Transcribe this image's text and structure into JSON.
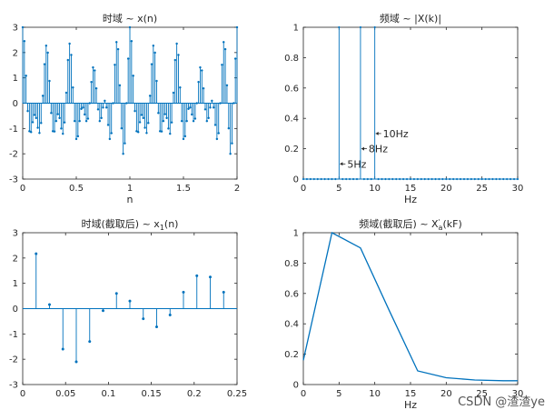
{
  "watermark": "CSDN @渣渣ye",
  "chart_data": [
    {
      "type": "stem",
      "title": "时域 ~ x(n)",
      "xlabel": "n",
      "xlim": [
        0,
        2
      ],
      "ylim": [
        -3,
        3
      ],
      "xticks": [
        0,
        0.5,
        1,
        1.5,
        2
      ],
      "xtick_labels": [
        "0",
        "0.5",
        "1",
        "1.5",
        "2"
      ],
      "yticks": [
        -3,
        -2,
        -1,
        0,
        1,
        2,
        3
      ],
      "ytick_labels": [
        "-3",
        "-2",
        "-1",
        "0",
        "1",
        "2",
        "3"
      ],
      "series": [
        {
          "x": [
            0,
            0.015625,
            0.03125,
            0.046875,
            0.0625,
            0.078125,
            0.09375,
            0.109375,
            0.125,
            0.140625,
            0.15625,
            0.171875,
            0.1875,
            0.203125,
            0.21875,
            0.234375,
            0.25,
            0.265625,
            0.28125,
            0.296875,
            0.3125,
            0.328125,
            0.34375,
            0.359375,
            0.375,
            0.390625,
            0.40625,
            0.421875,
            0.4375,
            0.453125,
            0.46875,
            0.484375,
            0.5,
            0.515625,
            0.53125,
            0.546875,
            0.5625,
            0.578125,
            0.59375,
            0.609375,
            0.625,
            0.640625,
            0.65625,
            0.671875,
            0.6875,
            0.703125,
            0.71875,
            0.734375,
            0.75,
            0.765625,
            0.78125,
            0.796875,
            0.8125,
            0.828125,
            0.84375,
            0.859375,
            0.875,
            0.890625,
            0.90625,
            0.921875,
            0.9375,
            0.953125,
            0.96875,
            0.984375,
            1,
            1.015625,
            1.03125,
            1.046875,
            1.0625,
            1.078125,
            1.09375,
            1.109375,
            1.125,
            1.140625,
            1.15625,
            1.171875,
            1.1875,
            1.203125,
            1.21875,
            1.234375,
            1.25,
            1.265625,
            1.28125,
            1.296875,
            1.3125,
            1.328125,
            1.34375,
            1.359375,
            1.375,
            1.390625,
            1.40625,
            1.421875,
            1.4375,
            1.453125,
            1.46875,
            1.484375,
            1.5,
            1.515625,
            1.53125,
            1.546875,
            1.5625,
            1.578125,
            1.59375,
            1.609375,
            1.625,
            1.640625,
            1.65625,
            1.671875,
            1.6875,
            1.703125,
            1.71875,
            1.734375,
            1.75,
            1.765625,
            1.78125,
            1.796875,
            1.8125,
            1.828125,
            1.84375,
            1.859375,
            1.875,
            1.890625,
            1.90625,
            1.921875,
            1.9375,
            1.953125,
            1.96875,
            1.984375,
            2
          ],
          "y": [
            3,
            2.4525,
            1.0849,
            -0.31,
            -1.1071,
            -1.1418,
            -0.7518,
            -0.4646,
            -0.5858,
            -0.9709,
            -1.1765,
            -0.7825,
            0.2929,
            1.5398,
            2.2735,
            1.997,
            0.8787,
            -0.3879,
            -1.1071,
            -1.1172,
            -0.7071,
            -0.4336,
            -0.5858,
            -1.0006,
            -1.2071,
            -0.7608,
            0.4142,
            1.7045,
            2.3536,
            1.9075,
            0.6213,
            -0.7071,
            -1.4142,
            -1.3062,
            -0.7071,
            -0.2244,
            -0.1716,
            -0.4464,
            -0.7071,
            -0.6109,
            0,
            0.8383,
            1.4142,
            1.2932,
            0.5858,
            -0.2447,
            -0.7071,
            -0.5854,
            -0.1716,
            0.0951,
            -0.1716,
            -0.859,
            -1.4142,
            -1.1843,
            0,
            1.5173,
            2.4142,
            2.1339,
            0.7071,
            -0.9934,
            -2,
            -1.5868,
            0,
            1.7604,
            3,
            2.4525,
            1.0849,
            -0.31,
            -1.1071,
            -1.1418,
            -0.7518,
            -0.4646,
            -0.5858,
            -0.9709,
            -1.1765,
            -0.7825,
            0.2929,
            1.5398,
            2.2735,
            1.997,
            0.8787,
            -0.3879,
            -1.1071,
            -1.1172,
            -0.7071,
            -0.4336,
            -0.5858,
            -1.0006,
            -1.2071,
            -0.7608,
            0.4142,
            1.7045,
            2.3536,
            1.9075,
            0.6213,
            -0.7071,
            -1.4142,
            -1.3062,
            -0.7071,
            -0.2244,
            -0.1716,
            -0.4464,
            -0.7071,
            -0.6109,
            0,
            0.8383,
            1.4142,
            1.2932,
            0.5858,
            -0.2447,
            -0.7071,
            -0.5854,
            -0.1716,
            0.0951,
            -0.1716,
            -0.859,
            -1.4142,
            -1.1843,
            0,
            1.5173,
            2.4142,
            2.1339,
            0.7071,
            -0.9934,
            -2,
            -1.5868,
            0,
            1.7604,
            3
          ]
        }
      ]
    },
    {
      "type": "stem",
      "title": "频域 ~ |X(k)|",
      "xlabel": "Hz",
      "xlim": [
        0,
        30
      ],
      "ylim": [
        0,
        1
      ],
      "xticks": [
        0,
        5,
        10,
        15,
        20,
        25,
        30
      ],
      "xtick_labels": [
        "0",
        "5",
        "10",
        "15",
        "20",
        "25",
        "30"
      ],
      "yticks": [
        0,
        0.2,
        0.4,
        0.6,
        0.8,
        1
      ],
      "ytick_labels": [
        "0",
        "0.2",
        "0.4",
        "0.6",
        "0.8",
        "1"
      ],
      "series": [
        {
          "x": [
            0,
            0.5,
            1,
            1.5,
            2,
            2.5,
            3,
            3.5,
            4,
            4.5,
            5,
            5.5,
            6,
            6.5,
            7,
            7.5,
            8,
            8.5,
            9,
            9.5,
            10,
            10.5,
            11,
            11.5,
            12,
            12.5,
            13,
            13.5,
            14,
            14.5,
            15,
            15.5,
            16,
            16.5,
            17,
            17.5,
            18,
            18.5,
            19,
            19.5,
            20,
            20.5,
            21,
            21.5,
            22,
            22.5,
            23,
            23.5,
            24,
            24.5,
            25,
            25.5,
            26,
            26.5,
            27,
            27.5,
            28,
            28.5,
            29,
            29.5,
            30
          ],
          "y": [
            0,
            0,
            0,
            0,
            0,
            0,
            0,
            0,
            0,
            0,
            1,
            0,
            0,
            0,
            0,
            0,
            1,
            0,
            0,
            0,
            1,
            0,
            0,
            0,
            0,
            0,
            0,
            0,
            0,
            0,
            0,
            0,
            0,
            0,
            0,
            0,
            0,
            0,
            0,
            0,
            0,
            0,
            0,
            0,
            0,
            0,
            0,
            0,
            0,
            0,
            0,
            0,
            0,
            0,
            0,
            0,
            0,
            0,
            0,
            0,
            0
          ]
        }
      ],
      "annotations": [
        {
          "text": "5Hz",
          "x": 5,
          "y": 0.1
        },
        {
          "text": "8Hz",
          "x": 8,
          "y": 0.2
        },
        {
          "text": "10Hz",
          "x": 10,
          "y": 0.3
        }
      ]
    },
    {
      "type": "stem",
      "title_parts": [
        "时域(截取后) ~ x",
        "1",
        "(n)"
      ],
      "xlabel": "",
      "xlim": [
        0,
        0.25
      ],
      "ylim": [
        -3,
        3
      ],
      "xticks": [
        0,
        0.05,
        0.1,
        0.15,
        0.2,
        0.25
      ],
      "xtick_labels": [
        "0",
        "0.05",
        "0.1",
        "0.15",
        "0.2",
        "0.25"
      ],
      "yticks": [
        -3,
        -2,
        -1,
        0,
        1,
        2,
        3
      ],
      "ytick_labels": [
        "-3",
        "-2",
        "-1",
        "0",
        "1",
        "2",
        "3"
      ],
      "series": [
        {
          "x": [
            0.015625,
            0.03125,
            0.046875,
            0.0625,
            0.078125,
            0.09375,
            0.109375,
            0.125,
            0.140625,
            0.15625,
            0.171875,
            0.1875,
            0.203125,
            0.21875,
            0.234375
          ],
          "y": [
            2.17,
            0.16,
            -1.6,
            -2.1,
            -1.3,
            -0.08,
            0.6,
            0.3,
            -0.4,
            -0.72,
            -0.25,
            0.65,
            1.3,
            1.25,
            0.65
          ]
        }
      ]
    },
    {
      "type": "line",
      "title_parts": [
        "频域(截取后) ~ X",
        "'",
        "a",
        "(kF)"
      ],
      "xlabel": "Hz",
      "xlim": [
        0,
        30
      ],
      "ylim": [
        0,
        1
      ],
      "xticks": [
        0,
        5,
        10,
        15,
        20,
        25,
        30
      ],
      "xtick_labels": [
        "0",
        "5",
        "10",
        "15",
        "20",
        "25",
        "30"
      ],
      "yticks": [
        0,
        0.2,
        0.4,
        0.6,
        0.8,
        1
      ],
      "ytick_labels": [
        "0",
        "0.2",
        "0.4",
        "0.6",
        "0.8",
        "1"
      ],
      "series": [
        {
          "x": [
            0,
            4,
            8,
            12,
            16,
            20,
            24,
            28,
            30
          ],
          "y": [
            0.16,
            1,
            0.9,
            0.49,
            0.09,
            0.045,
            0.03,
            0.025,
            0.025
          ]
        }
      ]
    }
  ]
}
